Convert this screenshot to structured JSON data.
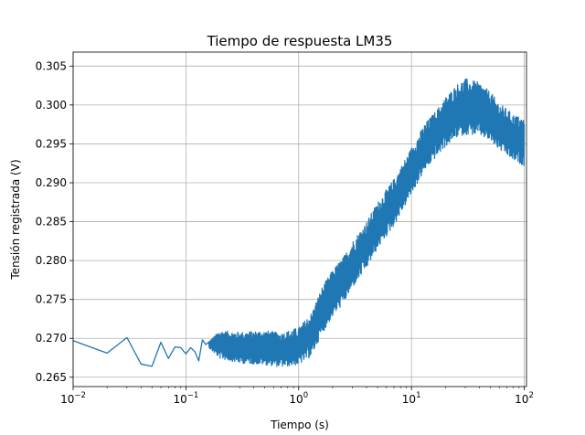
{
  "chart_data": {
    "type": "line",
    "title": "Tiempo de respuesta LM35",
    "xlabel": "Tiempo (s)",
    "ylabel": "Tensión registrada (V)",
    "xscale": "log",
    "xlim": [
      0.01,
      100
    ],
    "ylim": [
      0.2638,
      0.3068
    ],
    "grid": true,
    "legend": "none",
    "colors": {
      "series": "#1f77b4"
    },
    "x_ticks": [
      {
        "base": "10",
        "exp": "−2",
        "value": 0.01
      },
      {
        "base": "10",
        "exp": "−1",
        "value": 0.1
      },
      {
        "base": "10",
        "exp": "0",
        "value": 1
      },
      {
        "base": "10",
        "exp": "1",
        "value": 10
      },
      {
        "base": "10",
        "exp": "2",
        "value": 100
      }
    ],
    "y_ticks": [
      "0.265",
      "0.270",
      "0.275",
      "0.280",
      "0.285",
      "0.290",
      "0.295",
      "0.300",
      "0.305"
    ],
    "series": [
      {
        "x": [
          0.01,
          0.02,
          0.03,
          0.04,
          0.05,
          0.06,
          0.07,
          0.08,
          0.09,
          0.1,
          0.11,
          0.12,
          0.13,
          0.14,
          0.15,
          0.2,
          0.3,
          0.5,
          0.7,
          1.0,
          1.3,
          1.6,
          2.0,
          2.5,
          3.0,
          4.0,
          5.0,
          7.0,
          10,
          13,
          17,
          20,
          25,
          30,
          40,
          50,
          60,
          70,
          80,
          90,
          100
        ],
        "y": [
          0.2697,
          0.2681,
          0.2701,
          0.2667,
          0.2664,
          0.2695,
          0.2674,
          0.2689,
          0.2688,
          0.268,
          0.2688,
          0.2683,
          0.2671,
          0.2698,
          0.2692,
          0.2692,
          0.2688,
          0.2688,
          0.2685,
          0.269,
          0.2705,
          0.2735,
          0.2758,
          0.2775,
          0.2795,
          0.282,
          0.2845,
          0.2875,
          0.2915,
          0.2945,
          0.2965,
          0.2978,
          0.2992,
          0.2998,
          0.2995,
          0.2985,
          0.2972,
          0.2965,
          0.2958,
          0.2955,
          0.2952
        ],
        "noise_amplitude": [
          0,
          0,
          0,
          0,
          0,
          0,
          0,
          0,
          0,
          0,
          0,
          0,
          0,
          0,
          0,
          0.0018,
          0.002,
          0.0022,
          0.0022,
          0.0024,
          0.0028,
          0.003,
          0.003,
          0.003,
          0.003,
          0.003,
          0.003,
          0.003,
          0.003,
          0.003,
          0.003,
          0.0032,
          0.0034,
          0.0036,
          0.0034,
          0.0032,
          0.003,
          0.003,
          0.003,
          0.003,
          0.003
        ]
      }
    ]
  }
}
